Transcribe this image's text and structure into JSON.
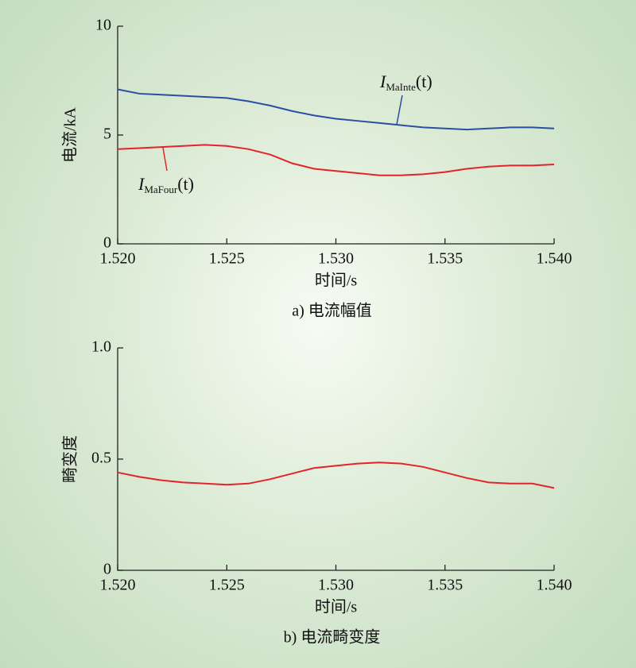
{
  "chart_data": [
    {
      "type": "line",
      "caption": "a) 电流幅值",
      "y_label": "电流/kA",
      "x_label": "时间/s",
      "x": [
        1.52,
        1.521,
        1.522,
        1.523,
        1.524,
        1.525,
        1.526,
        1.527,
        1.528,
        1.529,
        1.53,
        1.531,
        1.532,
        1.533,
        1.534,
        1.535,
        1.536,
        1.537,
        1.538,
        1.539,
        1.54
      ],
      "xlim": [
        1.52,
        1.54
      ],
      "xticks": [
        {
          "value": 1.52,
          "label": "1.520"
        },
        {
          "value": 1.525,
          "label": "1.525"
        },
        {
          "value": 1.53,
          "label": "1.530"
        },
        {
          "value": 1.535,
          "label": "1.535"
        },
        {
          "value": 1.54,
          "label": "1.540"
        }
      ],
      "ylim": [
        0,
        10
      ],
      "yticks": [
        0,
        5,
        10
      ],
      "series": [
        {
          "name_parts": [
            "I",
            "MaInte",
            "(t)"
          ],
          "color": "#2b4ea2",
          "values": [
            7.1,
            6.9,
            6.85,
            6.8,
            6.75,
            6.7,
            6.55,
            6.35,
            6.1,
            5.9,
            5.75,
            5.65,
            5.55,
            5.45,
            5.35,
            5.3,
            5.25,
            5.3,
            5.35,
            5.35,
            5.3
          ]
        },
        {
          "name_parts": [
            "I",
            "MaFour",
            "(t)"
          ],
          "color": "#e3242b",
          "values": [
            4.35,
            4.4,
            4.45,
            4.5,
            4.55,
            4.5,
            4.35,
            4.1,
            3.7,
            3.45,
            3.35,
            3.25,
            3.15,
            3.15,
            3.2,
            3.3,
            3.45,
            3.55,
            3.6,
            3.6,
            3.65
          ]
        }
      ]
    },
    {
      "type": "line",
      "caption": "b) 电流畸变度",
      "y_label": "畸变度",
      "x_label": "时间/s",
      "x": [
        1.52,
        1.521,
        1.522,
        1.523,
        1.524,
        1.525,
        1.526,
        1.527,
        1.528,
        1.529,
        1.53,
        1.531,
        1.532,
        1.533,
        1.534,
        1.535,
        1.536,
        1.537,
        1.538,
        1.539,
        1.54
      ],
      "xlim": [
        1.52,
        1.54
      ],
      "xticks": [
        {
          "value": 1.52,
          "label": "1.520"
        },
        {
          "value": 1.525,
          "label": "1.525"
        },
        {
          "value": 1.53,
          "label": "1.530"
        },
        {
          "value": 1.535,
          "label": "1.535"
        },
        {
          "value": 1.54,
          "label": "1.540"
        }
      ],
      "ylim": [
        0,
        1
      ],
      "yticks": [
        0,
        0.5,
        {
          "value": 1,
          "label": "1.0"
        }
      ],
      "series": [
        {
          "color": "#e3242b",
          "values": [
            0.44,
            0.42,
            0.405,
            0.395,
            0.39,
            0.385,
            0.39,
            0.41,
            0.435,
            0.46,
            0.47,
            0.48,
            0.485,
            0.48,
            0.465,
            0.44,
            0.415,
            0.395,
            0.39,
            0.39,
            0.37
          ]
        }
      ]
    }
  ]
}
